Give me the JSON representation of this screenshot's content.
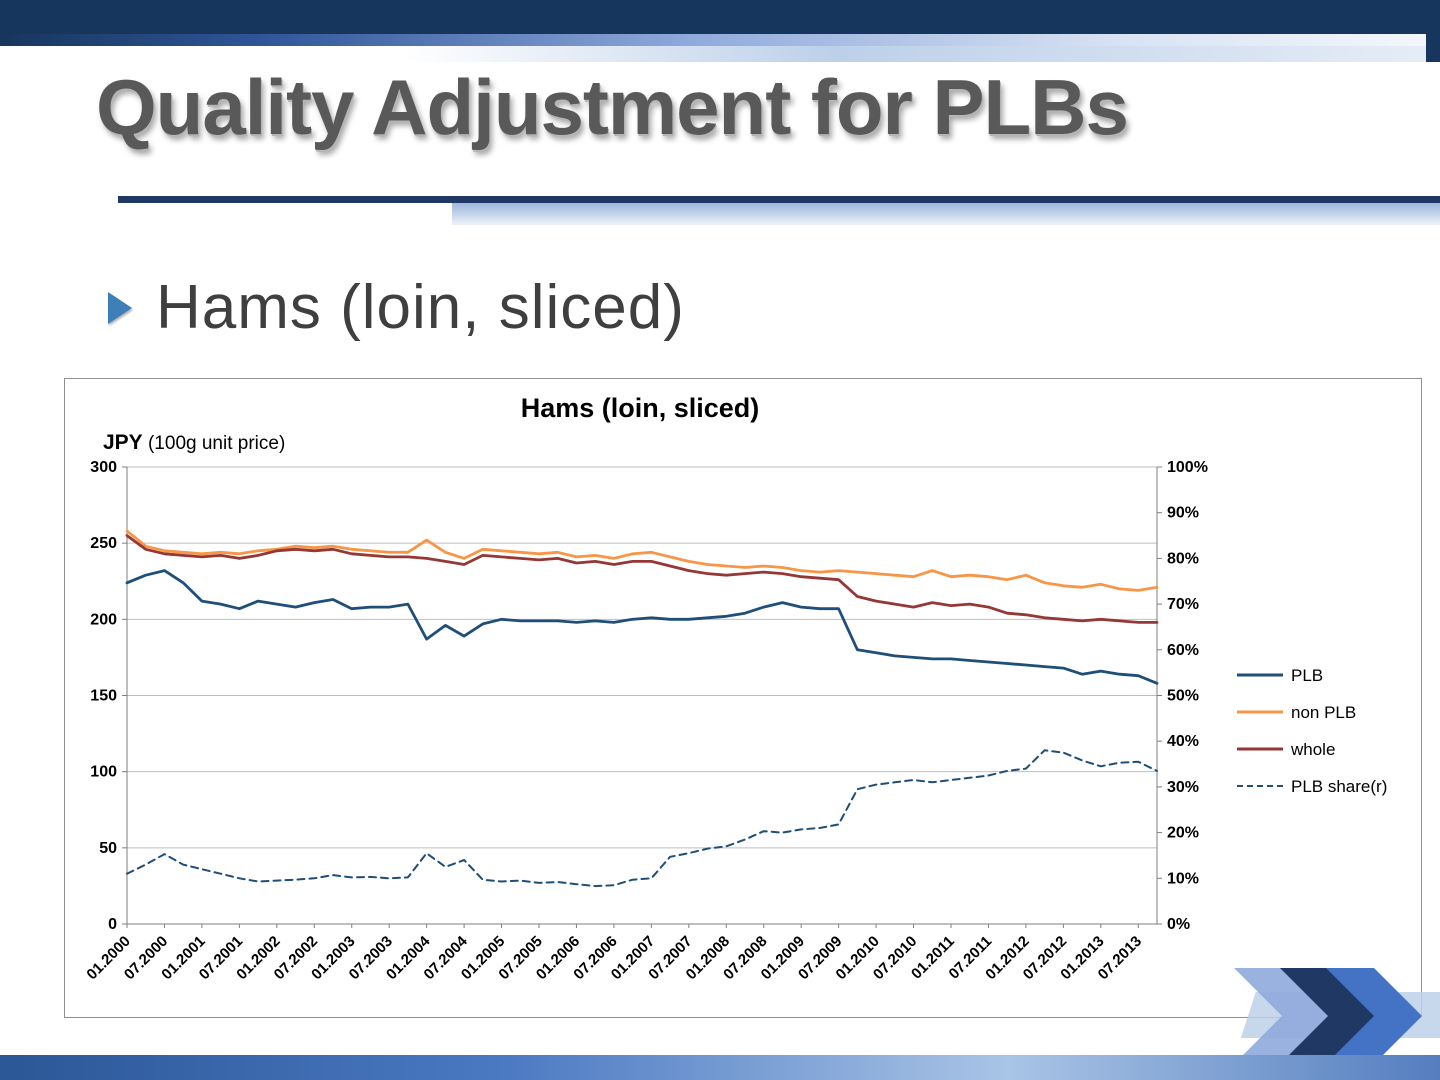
{
  "slide": {
    "title": "Quality Adjustment for PLBs",
    "bullet": "Hams (loin, sliced)"
  },
  "colors": {
    "navy": "#17365D",
    "accent_blue": "#4472C4",
    "plb_blue": "#1F4E79",
    "non_plb_orange": "#F79646",
    "whole_red": "#953735"
  },
  "chart_data": {
    "type": "line",
    "title": "Hams (loin, sliced)",
    "left_axis_unit_bold": "JPY",
    "left_axis_unit_rest": " (100g unit price)",
    "left_range": [
      0,
      300
    ],
    "right_range": [
      0,
      100
    ],
    "left_ticks": [
      300,
      250,
      200,
      150,
      100,
      50,
      0
    ],
    "right_ticks": [
      "100%",
      "90%",
      "80%",
      "70%",
      "60%",
      "50%",
      "40%",
      "30%",
      "20%",
      "10%",
      "0%"
    ],
    "grid": true,
    "legend_position": "right",
    "x_labels": [
      "01.2000",
      "07.2000",
      "01.2001",
      "07.2001",
      "01.2002",
      "07.2002",
      "01.2003",
      "07.2003",
      "01.2004",
      "07.2004",
      "01.2005",
      "07.2005",
      "01.2006",
      "07.2006",
      "01.2007",
      "07.2007",
      "01.2008",
      "07.2008",
      "01.2009",
      "07.2009",
      "01.2010",
      "07.2010",
      "01.2011",
      "07.2011",
      "01.2012",
      "07.2012",
      "01.2013",
      "07.2013"
    ],
    "x_note": "data points are quarterly from 01.2000 to 10.2013; labels mark every second point",
    "series": [
      {
        "name": "PLB",
        "axis": "left",
        "style": "solid",
        "color": "#1F4E79",
        "values": [
          224,
          229,
          232,
          224,
          212,
          210,
          207,
          212,
          210,
          208,
          211,
          213,
          207,
          208,
          208,
          210,
          187,
          196,
          189,
          197,
          200,
          199,
          199,
          199,
          198,
          199,
          198,
          200,
          201,
          200,
          200,
          201,
          202,
          204,
          208,
          211,
          208,
          207,
          207,
          180,
          178,
          176,
          175,
          174,
          174,
          173,
          172,
          171,
          170,
          169,
          168,
          164,
          166,
          164,
          163,
          158
        ]
      },
      {
        "name": "non PLB",
        "axis": "left",
        "style": "solid",
        "color": "#F79646",
        "values": [
          258,
          248,
          245,
          244,
          243,
          244,
          243,
          245,
          246,
          248,
          247,
          248,
          246,
          245,
          244,
          244,
          252,
          244,
          240,
          246,
          245,
          244,
          243,
          244,
          241,
          242,
          240,
          243,
          244,
          241,
          238,
          236,
          235,
          234,
          235,
          234,
          232,
          231,
          232,
          231,
          230,
          229,
          228,
          232,
          228,
          229,
          228,
          226,
          229,
          224,
          222,
          221,
          223,
          220,
          219,
          221
        ]
      },
      {
        "name": "whole",
        "axis": "left",
        "style": "solid",
        "color": "#953735",
        "values": [
          255,
          246,
          243,
          242,
          241,
          242,
          240,
          242,
          245,
          246,
          245,
          246,
          243,
          242,
          241,
          241,
          240,
          238,
          236,
          242,
          241,
          240,
          239,
          240,
          237,
          238,
          236,
          238,
          238,
          235,
          232,
          230,
          229,
          230,
          231,
          230,
          228,
          227,
          226,
          215,
          212,
          210,
          208,
          211,
          209,
          210,
          208,
          204,
          203,
          201,
          200,
          199,
          200,
          199,
          198,
          198
        ]
      },
      {
        "name": "PLB share(r)",
        "axis": "right",
        "style": "dashed",
        "color": "#1F4E79",
        "values": [
          11,
          13,
          15.3,
          13,
          12,
          11,
          10,
          9.3,
          9.5,
          9.7,
          10,
          10.7,
          10.2,
          10.3,
          10,
          10.2,
          15.5,
          12.5,
          14,
          9.7,
          9.3,
          9.5,
          9,
          9.2,
          8.7,
          8.3,
          8.5,
          9.7,
          10,
          14.7,
          15.5,
          16.5,
          17,
          18.5,
          20.3,
          20,
          20.7,
          21,
          21.8,
          29.5,
          30.5,
          31,
          31.5,
          31,
          31.5,
          32,
          32.5,
          33.5,
          34,
          38,
          37.5,
          35.8,
          34.5,
          35.3,
          35.5,
          33.5
        ]
      }
    ]
  }
}
